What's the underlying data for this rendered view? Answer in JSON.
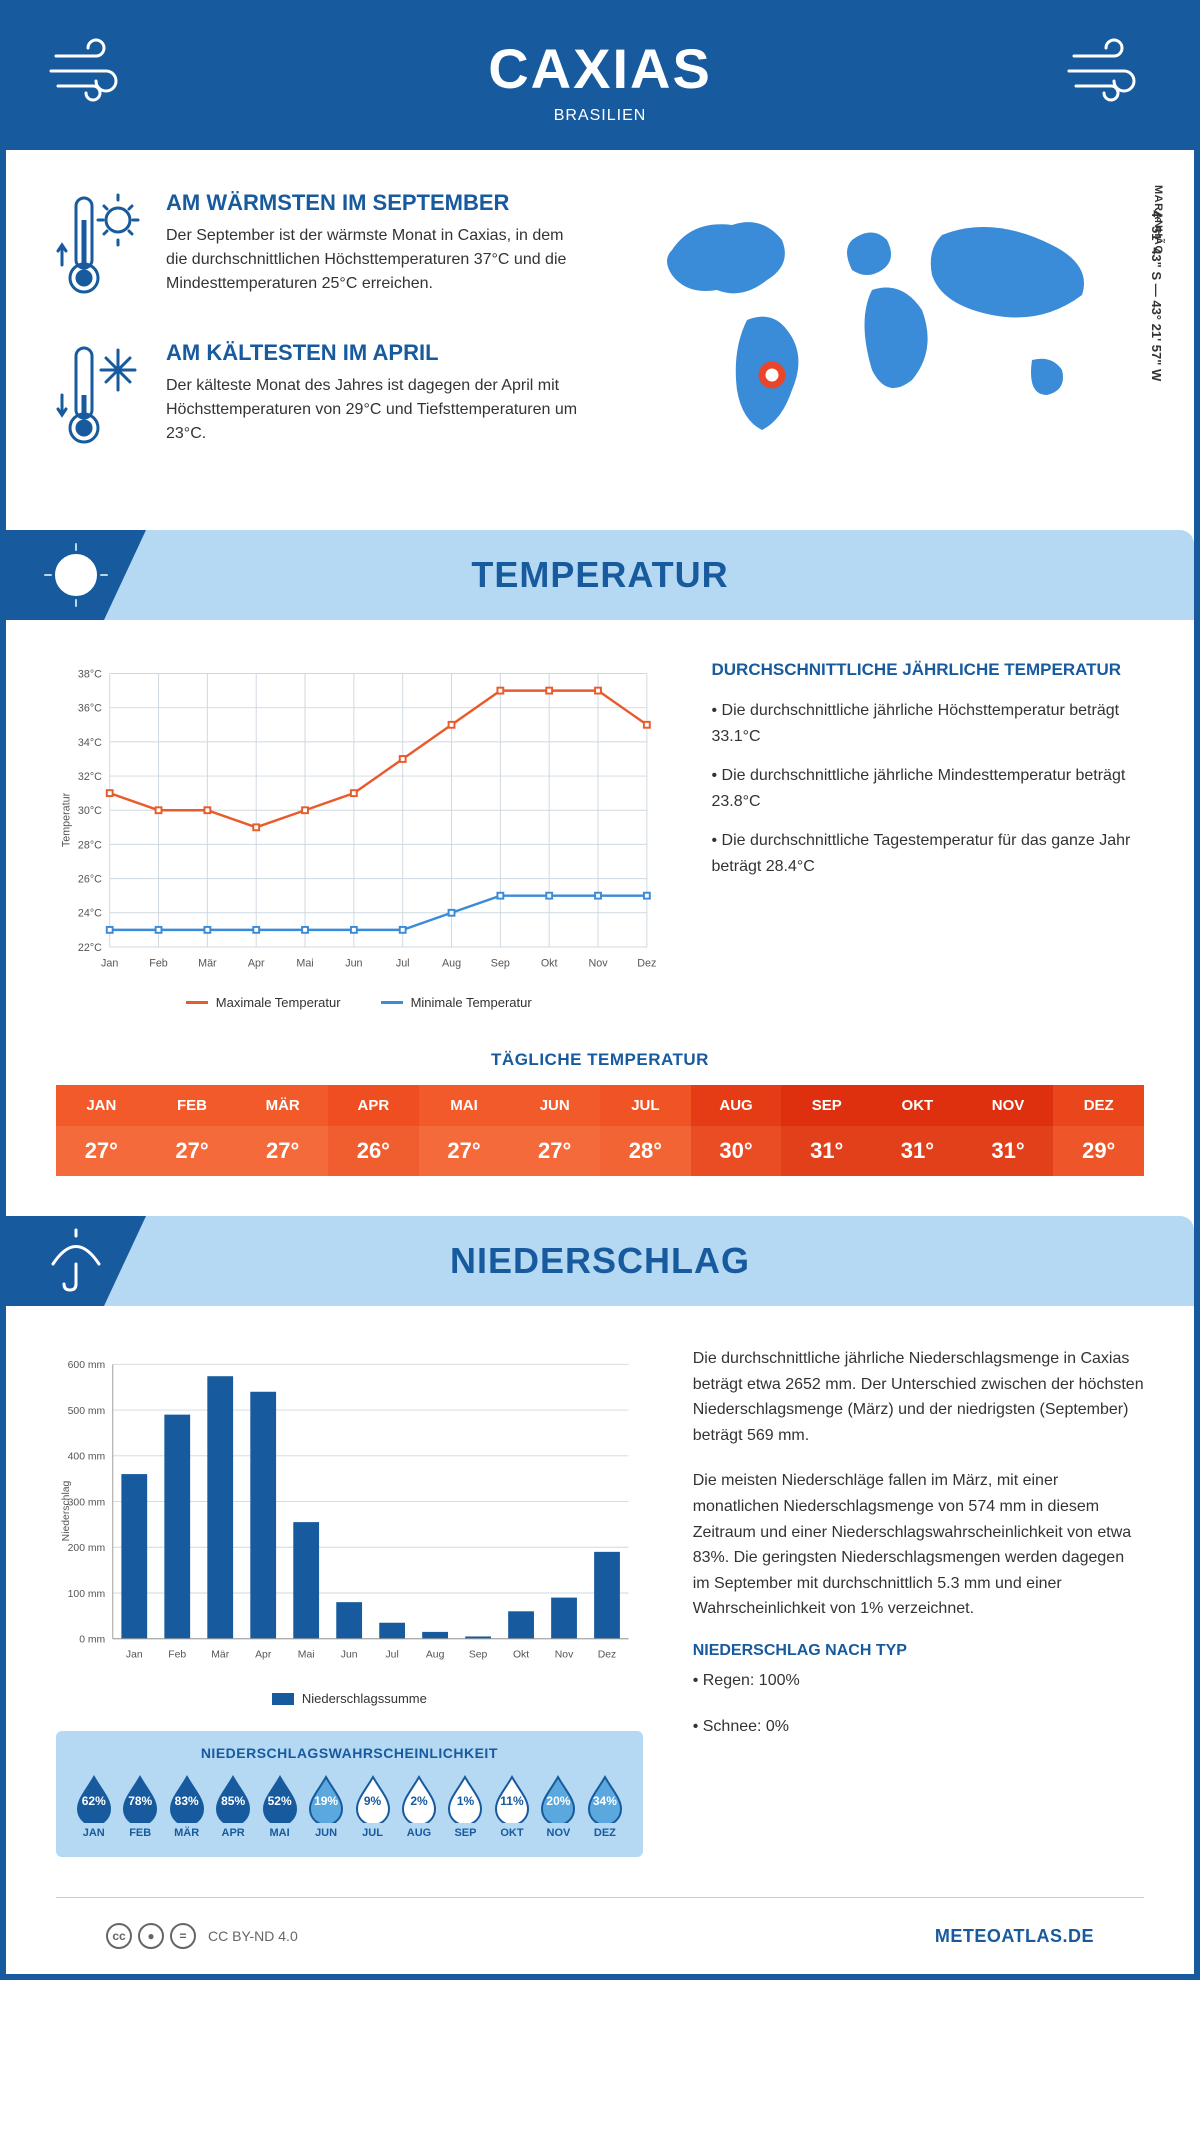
{
  "header": {
    "city": "CAXIAS",
    "country": "BRASILIEN"
  },
  "coords": "4° 51' 43\" S — 43° 21' 57\" W",
  "region": "MARANHÃO",
  "hottest": {
    "title": "AM WÄRMSTEN IM SEPTEMBER",
    "text": "Der September ist der wärmste Monat in Caxias, in dem die durchschnittlichen Höchsttemperaturen 37°C und die Mindesttemperaturen 25°C erreichen."
  },
  "coldest": {
    "title": "AM KÄLTESTEN IM APRIL",
    "text": "Der kälteste Monat des Jahres ist dagegen der April mit Höchsttemperaturen von 29°C und Tiefsttemperaturen um 23°C."
  },
  "temp_section_title": "TEMPERATUR",
  "precip_section_title": "NIEDERSCHLAG",
  "temp_info": {
    "title": "DURCHSCHNITTLICHE JÄHRLICHE TEMPERATUR",
    "p1": "• Die durchschnittliche jährliche Höchsttemperatur beträgt 33.1°C",
    "p2": "• Die durchschnittliche jährliche Mindesttemperatur beträgt 23.8°C",
    "p3": "• Die durchschnittliche Tagestemperatur für das ganze Jahr beträgt 28.4°C"
  },
  "months": [
    "Jan",
    "Feb",
    "Mär",
    "Apr",
    "Mai",
    "Jun",
    "Jul",
    "Aug",
    "Sep",
    "Okt",
    "Nov",
    "Dez"
  ],
  "months_upper": [
    "JAN",
    "FEB",
    "MÄR",
    "APR",
    "MAI",
    "JUN",
    "JUL",
    "AUG",
    "SEP",
    "OKT",
    "NOV",
    "DEZ"
  ],
  "temp_chart": {
    "max_series": [
      31,
      30,
      30,
      29,
      30,
      31,
      33,
      35,
      37,
      37,
      37,
      35
    ],
    "min_series": [
      23,
      23,
      23,
      23,
      23,
      23,
      23,
      24,
      25,
      25,
      25,
      25
    ],
    "ylim": [
      22,
      38
    ],
    "ytick_step": 2,
    "max_color": "#e85b2b",
    "min_color": "#3a8bd8",
    "grid_color": "#cfd8e0",
    "max_label": "Maximale Temperatur",
    "min_label": "Minimale Temperatur",
    "y_title": "Temperatur"
  },
  "daily_temp_title": "TÄGLICHE TEMPERATUR",
  "daily_temps": [
    "27°",
    "27°",
    "27°",
    "26°",
    "27°",
    "27°",
    "28°",
    "30°",
    "31°",
    "31°",
    "31°",
    "29°"
  ],
  "daily_month_colors": [
    "#f25a2a",
    "#f25a2a",
    "#f25a2a",
    "#ee4e20",
    "#f25a2a",
    "#f25a2a",
    "#f05424",
    "#e63c16",
    "#de2f0f",
    "#de2f0f",
    "#de2f0f",
    "#ea461c"
  ],
  "daily_value_colors": [
    "#f46a3a",
    "#f46a3a",
    "#f46a3a",
    "#f05e30",
    "#f46a3a",
    "#f46a3a",
    "#f26434",
    "#ea4c24",
    "#e23f1b",
    "#e23f1b",
    "#e23f1b",
    "#ee562a"
  ],
  "precip_text": {
    "p1": "Die durchschnittliche jährliche Niederschlagsmenge in Caxias beträgt etwa 2652 mm. Der Unterschied zwischen der höchsten Niederschlagsmenge (März) und der niedrigsten (September) beträgt 569 mm.",
    "p2": "Die meisten Niederschläge fallen im März, mit einer monatlichen Niederschlagsmenge von 574 mm in diesem Zeitraum und einer Niederschlagswahrscheinlichkeit von etwa 83%. Die geringsten Niederschlagsmengen werden dagegen im September mit durchschnittlich 5.3 mm und einer Wahrscheinlichkeit von 1% verzeichnet.",
    "type_title": "NIEDERSCHLAG NACH TYP",
    "type1": "• Regen: 100%",
    "type2": "• Schnee: 0%"
  },
  "precip_chart": {
    "values": [
      360,
      490,
      574,
      540,
      255,
      80,
      35,
      15,
      5,
      60,
      90,
      190
    ],
    "ylim": [
      0,
      600
    ],
    "ytick_step": 100,
    "bar_color": "#175a9e",
    "grid_color": "#cfd8e0",
    "legend": "Niederschlagssumme",
    "y_title": "Niederschlag"
  },
  "prob_title": "NIEDERSCHLAGSWAHRSCHEINLICHKEIT",
  "prob_values": [
    "62%",
    "78%",
    "83%",
    "85%",
    "52%",
    "19%",
    "9%",
    "2%",
    "1%",
    "11%",
    "20%",
    "34%"
  ],
  "prob_numeric": [
    62,
    78,
    83,
    85,
    52,
    19,
    9,
    2,
    1,
    11,
    20,
    34
  ],
  "footer": {
    "license": "CC BY-ND 4.0",
    "site": "METEOATLAS.DE"
  }
}
